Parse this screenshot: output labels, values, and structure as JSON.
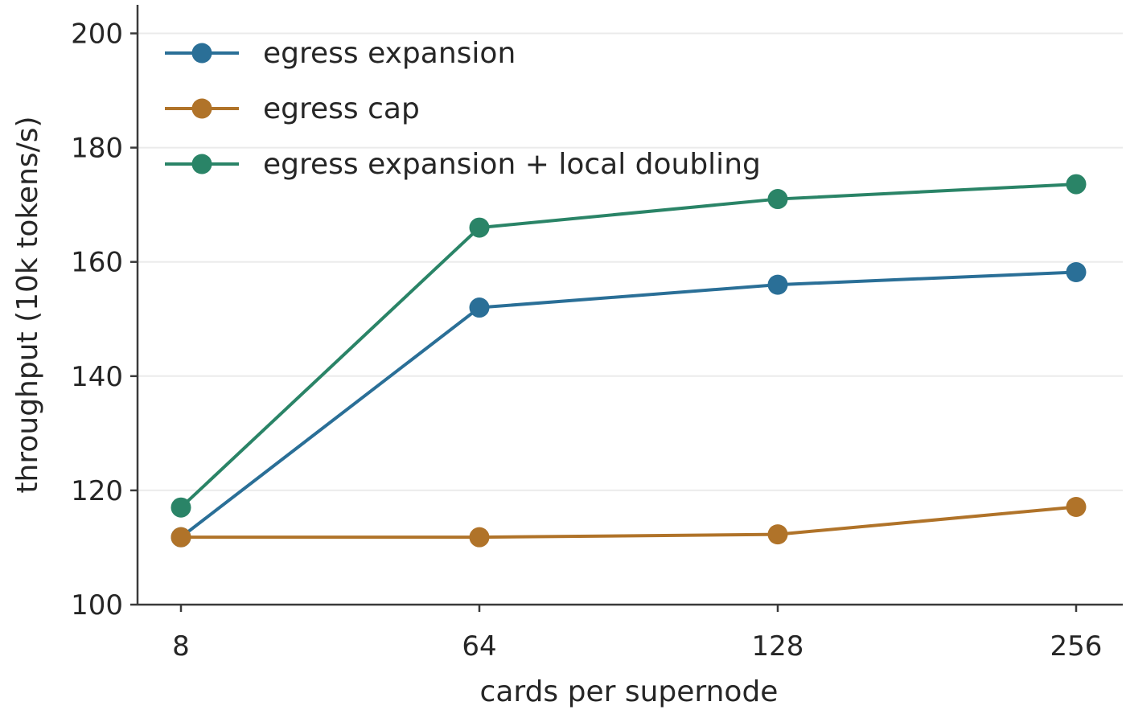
{
  "chart_data": {
    "type": "line",
    "title": "",
    "xlabel": "cards per supernode",
    "ylabel": "throughput (10k tokens/s)",
    "categories": [
      "8",
      "64",
      "128",
      "256"
    ],
    "ylim": [
      100,
      205
    ],
    "yticks": [
      100,
      120,
      140,
      160,
      180,
      200
    ],
    "grid": "horizontal",
    "legend_position": "top-left",
    "series": [
      {
        "name": "egress expansion",
        "color": "#2a6f97",
        "values": [
          111.8,
          152.0,
          156.0,
          158.2
        ]
      },
      {
        "name": "egress cap",
        "color": "#b07329",
        "values": [
          111.8,
          111.8,
          112.3,
          117.1
        ]
      },
      {
        "name": "egress expansion + local doubling",
        "color": "#2a8467",
        "values": [
          117.0,
          166.0,
          171.0,
          173.6
        ]
      }
    ]
  }
}
